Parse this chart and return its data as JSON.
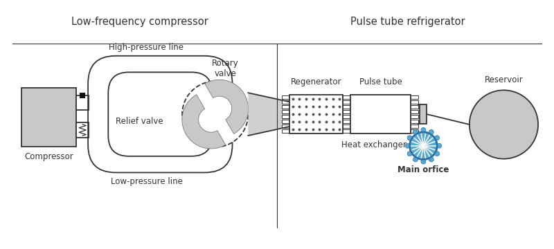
{
  "bg_color": "#ffffff",
  "line_color": "#333333",
  "gray_fill": "#b0b0b0",
  "light_gray": "#c8c8c8",
  "mid_gray": "#999999",
  "blue_fill": "#5aaad0",
  "blue_dark": "#2a6fa8",
  "blue_light": "#a8d4e8",
  "left_label": "Low-frequency compressor",
  "right_label": "Pulse tube refrigerator",
  "compressor_label": "Compressor",
  "high_pressure_label": "High-pressure line",
  "low_pressure_label": "Low-pressure line",
  "rotary_valve_label": "Rotary\nvalve",
  "relief_valve_label": "Relief valve",
  "regenerator_label": "Regenerator",
  "pulse_tube_label": "Pulse tube",
  "heat_exchanger_label": "Heat exchanger",
  "reservoir_label": "Reservoir",
  "main_orifice_label": "Main orfice",
  "font_size_section": 10.5,
  "font_size_label": 8.5,
  "font_size_bold": 8.5
}
